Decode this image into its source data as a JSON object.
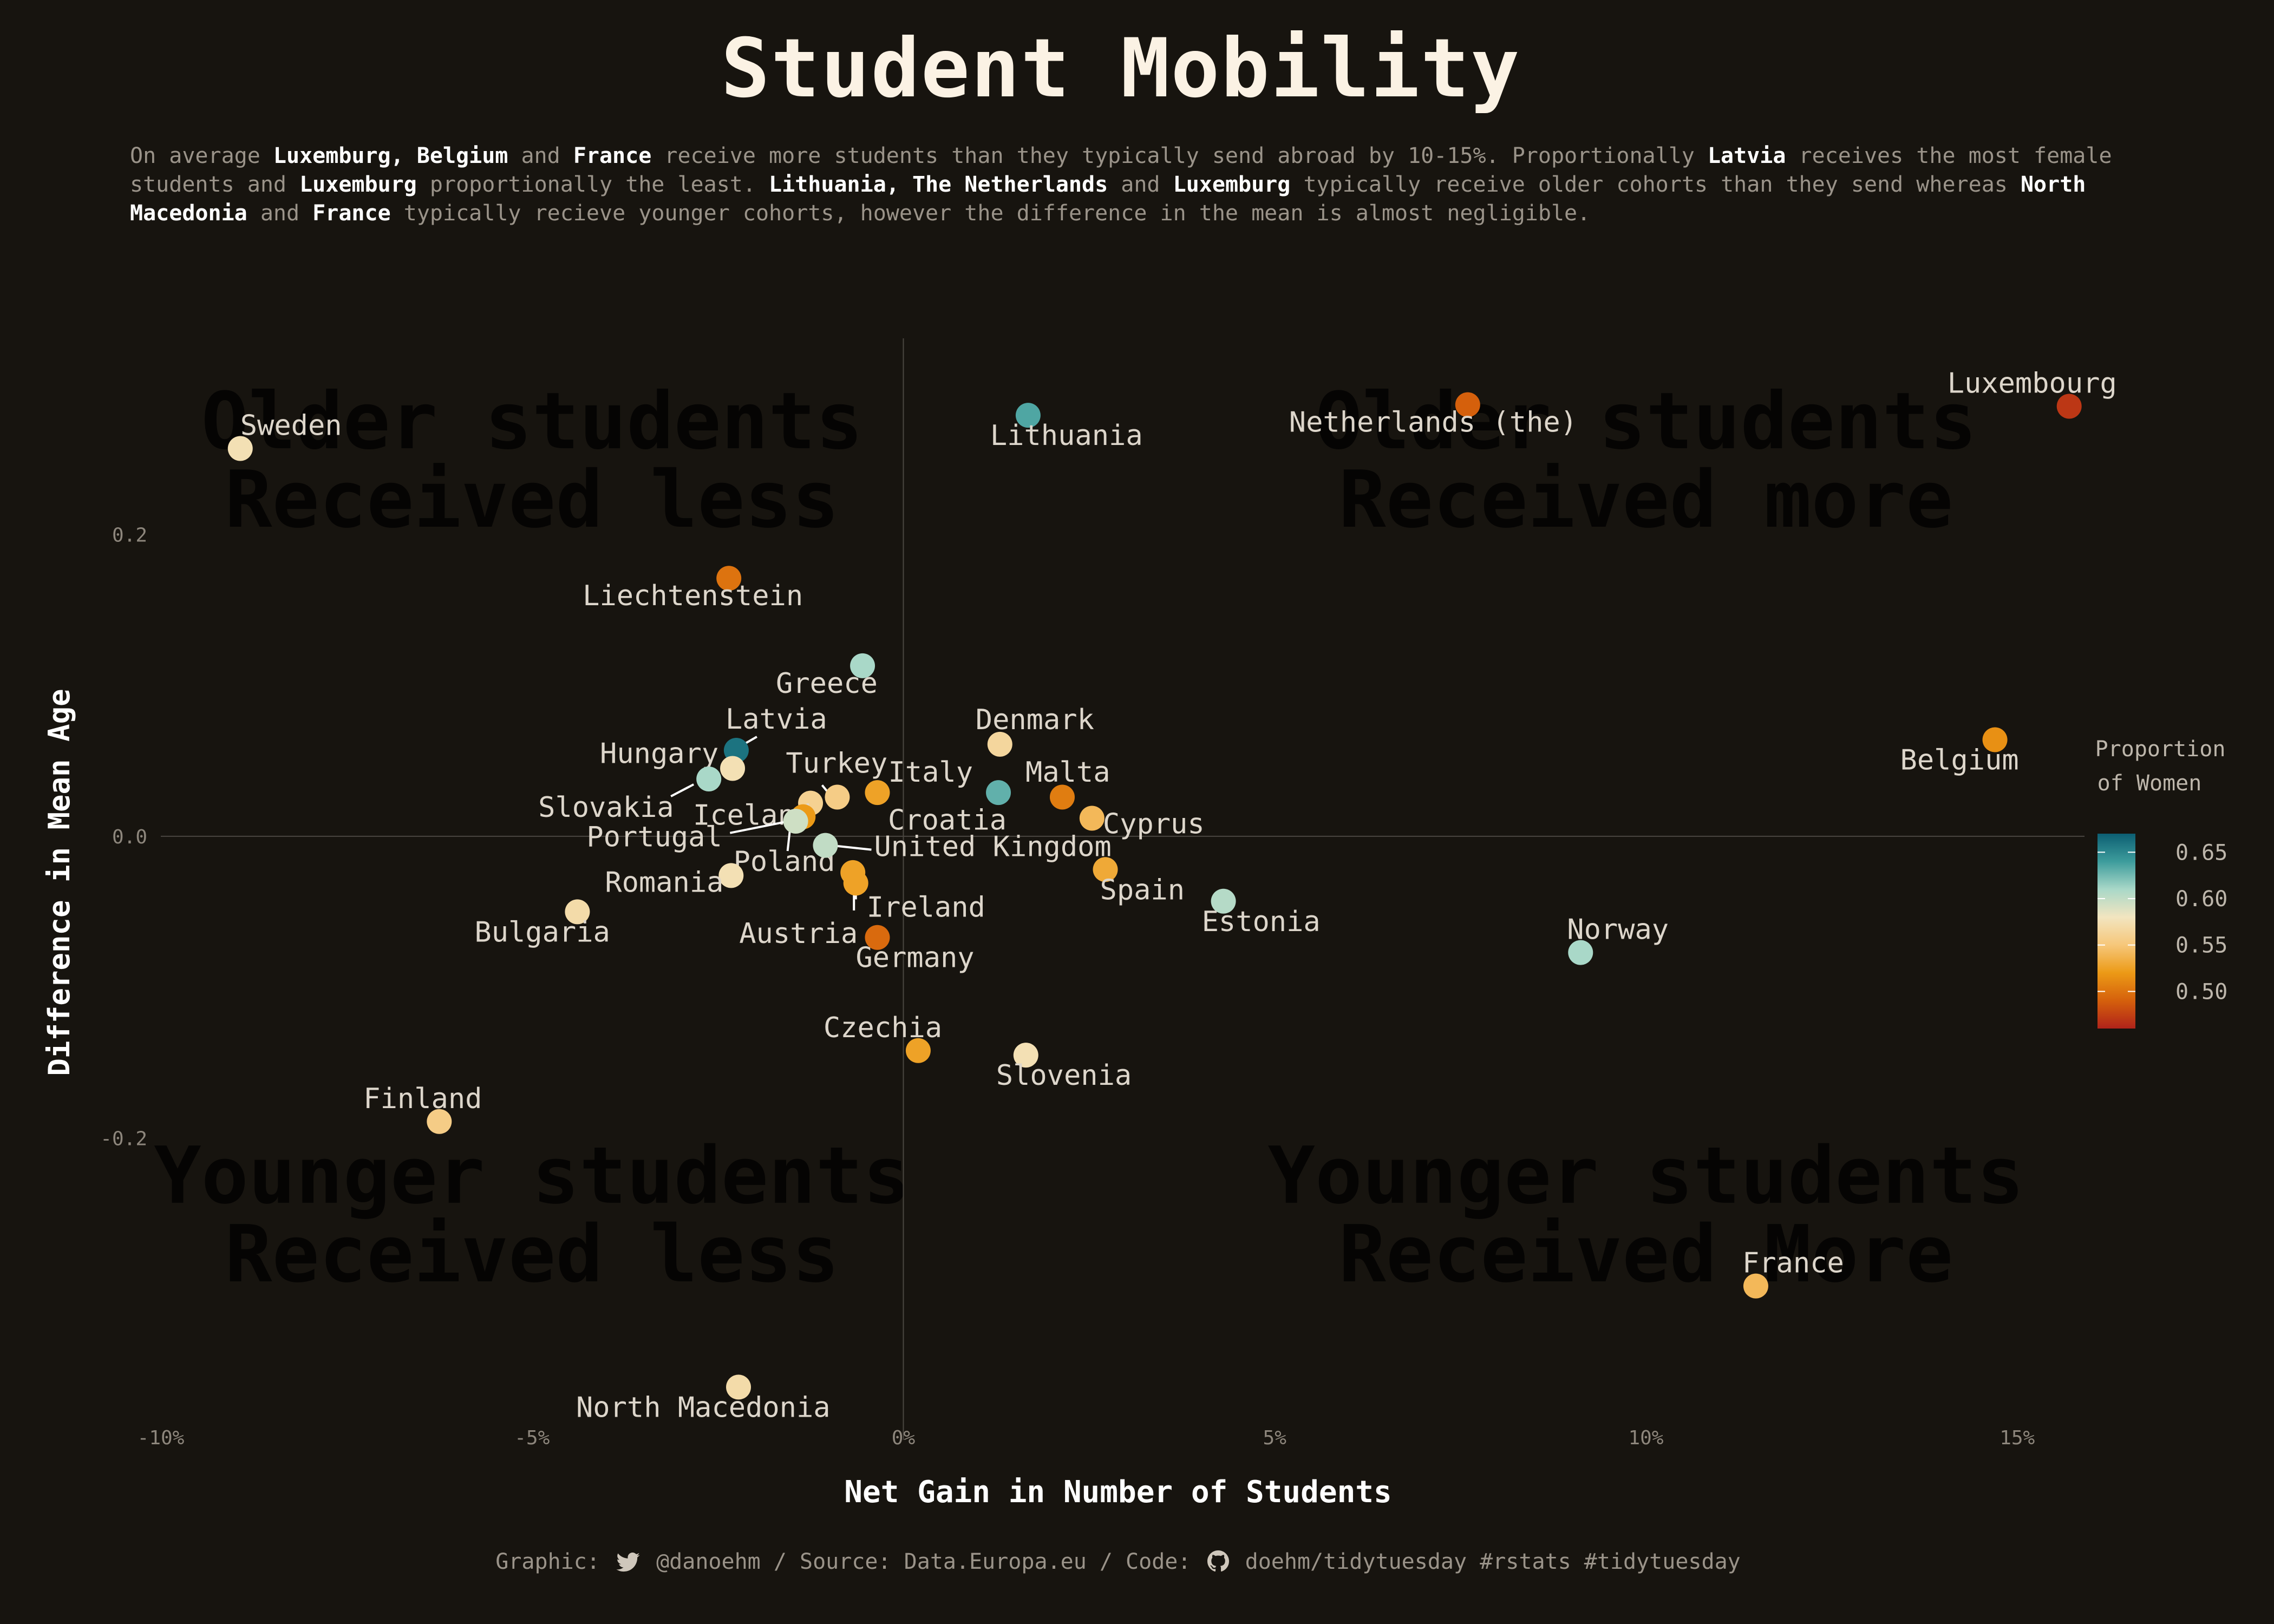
{
  "title": "Student Mobility",
  "subtitle_parts": [
    {
      "t": "On average ",
      "b": false
    },
    {
      "t": "Luxemburg, Belgium",
      "b": true
    },
    {
      "t": " and ",
      "b": false
    },
    {
      "t": "France",
      "b": true
    },
    {
      "t": " receive more students than they typically send abroad by 10-15%. Proportionally ",
      "b": false
    },
    {
      "t": "Latvia",
      "b": true
    },
    {
      "t": " receives the most female students and ",
      "b": false
    },
    {
      "t": "Luxemburg",
      "b": true
    },
    {
      "t": " proportionally the least. ",
      "b": false
    },
    {
      "t": "Lithuania, The Netherlands",
      "b": true
    },
    {
      "t": " and ",
      "b": false
    },
    {
      "t": "Luxemburg",
      "b": true
    },
    {
      "t": " typically receive older cohorts than they send whereas ",
      "b": false
    },
    {
      "t": "North Macedonia",
      "b": true
    },
    {
      "t": " and ",
      "b": false
    },
    {
      "t": "France",
      "b": true
    },
    {
      "t": " typically recieve younger cohorts, however the difference in the mean is almost negligible.",
      "b": false
    }
  ],
  "footer": {
    "graphic_label": "Graphic:",
    "handle": "@danoehm",
    "source": "/ Source: Data.Europa.eu / Code:",
    "repo": "doehm/tidytuesday #rstats #tidytuesday",
    "twitter_icon": "twitter-icon",
    "github_icon": "github-icon"
  },
  "colors": {
    "background": "#17140f",
    "scale": [
      "#b0231a",
      "#d5600c",
      "#ec9a16",
      "#f6c77a",
      "#f2e5c0",
      "#a9d8c8",
      "#3d9c9c",
      "#0c5e72"
    ]
  },
  "chart_data": {
    "type": "scatter",
    "xlabel": "Net Gain in Number of Students",
    "ylabel": "Difference in Mean Age",
    "xlim": [
      -0.1,
      0.17
    ],
    "ylim": [
      -0.4,
      0.33
    ],
    "x_ticks": [
      {
        "v": -0.1,
        "label": "-10%"
      },
      {
        "v": -0.05,
        "label": "-5%"
      },
      {
        "v": 0.0,
        "label": "0%"
      },
      {
        "v": 0.05,
        "label": "5%"
      },
      {
        "v": 0.1,
        "label": "10%"
      },
      {
        "v": 0.15,
        "label": "15%"
      }
    ],
    "y_ticks": [
      {
        "v": 0.2,
        "label": "0.2"
      },
      {
        "v": 0.0,
        "label": "0.0"
      },
      {
        "v": -0.2,
        "label": "-0.2"
      }
    ],
    "quadrant_labels": [
      {
        "lines": [
          "Older students",
          "Received less"
        ],
        "x": -0.05,
        "y": 0.25
      },
      {
        "lines": [
          "Older students",
          "Received more"
        ],
        "x": 0.1,
        "y": 0.25
      },
      {
        "lines": [
          "Younger students",
          "Received less"
        ],
        "x": -0.05,
        "y": -0.25
      },
      {
        "lines": [
          "Younger students",
          "Received More"
        ],
        "x": 0.1,
        "y": -0.25
      }
    ],
    "legend": {
      "title": [
        "Proportion",
        "of Women"
      ],
      "position": "right",
      "range": [
        0.46,
        0.67
      ],
      "ticks": [
        {
          "v": 0.65,
          "label": "0.65"
        },
        {
          "v": 0.6,
          "label": "0.60"
        },
        {
          "v": 0.55,
          "label": "0.55"
        },
        {
          "v": 0.5,
          "label": "0.50"
        }
      ]
    },
    "points": [
      {
        "name": "Sweden",
        "x": -0.0893,
        "y": 0.257,
        "women": 0.575
      },
      {
        "name": "Lithuania",
        "x": 0.0168,
        "y": 0.279,
        "women": 0.635
      },
      {
        "name": "Netherlands (the)",
        "x": 0.076,
        "y": 0.286,
        "women": 0.49
      },
      {
        "name": "Luxembourg",
        "x": 0.157,
        "y": 0.285,
        "women": 0.47
      },
      {
        "name": "Liechtenstein",
        "x": -0.0235,
        "y": 0.171,
        "women": 0.5
      },
      {
        "name": "Greece",
        "x": -0.0055,
        "y": 0.113,
        "women": 0.61
      },
      {
        "name": "Latvia",
        "x": -0.0225,
        "y": 0.057,
        "women": 0.66
      },
      {
        "name": "Hungary",
        "x": -0.023,
        "y": 0.045,
        "women": 0.575
      },
      {
        "name": "Slovakia",
        "x": -0.0262,
        "y": 0.038,
        "women": 0.61
      },
      {
        "name": "Denmark",
        "x": 0.013,
        "y": 0.061,
        "women": 0.565
      },
      {
        "name": "Turkey",
        "x": -0.0089,
        "y": 0.026,
        "women": 0.555
      },
      {
        "name": "Italy",
        "x": -0.0035,
        "y": 0.029,
        "women": 0.525
      },
      {
        "name": "Malta",
        "x": 0.0128,
        "y": 0.029,
        "women": 0.63
      },
      {
        "name": "Croatia",
        "x": 0.0214,
        "y": 0.026,
        "women": 0.505
      },
      {
        "name": "Cyprus",
        "x": 0.0254,
        "y": 0.012,
        "women": 0.54
      },
      {
        "name": "Iceland",
        "x": -0.0125,
        "y": 0.022,
        "women": 0.56
      },
      {
        "name": "Portugal",
        "x": -0.0135,
        "y": 0.013,
        "women": 0.52
      },
      {
        "name": "Poland",
        "x": -0.0145,
        "y": 0.01,
        "women": 0.595
      },
      {
        "name": "United Kingdom",
        "x": -0.0105,
        "y": -0.006,
        "women": 0.6
      },
      {
        "name": "Romania",
        "x": -0.0232,
        "y": -0.026,
        "women": 0.575
      },
      {
        "name": "Austria",
        "x": -0.0068,
        "y": -0.024,
        "women": 0.525
      },
      {
        "name": "Ireland",
        "x": -0.0064,
        "y": -0.031,
        "women": 0.525
      },
      {
        "name": "Spain",
        "x": 0.0272,
        "y": -0.022,
        "women": 0.53
      },
      {
        "name": "Estonia",
        "x": 0.0431,
        "y": -0.043,
        "women": 0.605
      },
      {
        "name": "Norway",
        "x": 0.0912,
        "y": -0.077,
        "women": 0.61
      },
      {
        "name": "Belgium",
        "x": 0.147,
        "y": 0.064,
        "women": 0.515
      },
      {
        "name": "Bulgaria",
        "x": -0.0439,
        "y": -0.05,
        "women": 0.57
      },
      {
        "name": "Germany",
        "x": -0.0035,
        "y": -0.067,
        "women": 0.495
      },
      {
        "name": "Czechia",
        "x": 0.002,
        "y": -0.142,
        "women": 0.525
      },
      {
        "name": "Slovenia",
        "x": 0.0165,
        "y": -0.145,
        "women": 0.575
      },
      {
        "name": "Finland",
        "x": -0.0625,
        "y": -0.189,
        "women": 0.555
      },
      {
        "name": "France",
        "x": 0.1148,
        "y": -0.298,
        "women": 0.54
      },
      {
        "name": "North Macedonia",
        "x": -0.0222,
        "y": -0.365,
        "women": 0.57
      }
    ]
  }
}
